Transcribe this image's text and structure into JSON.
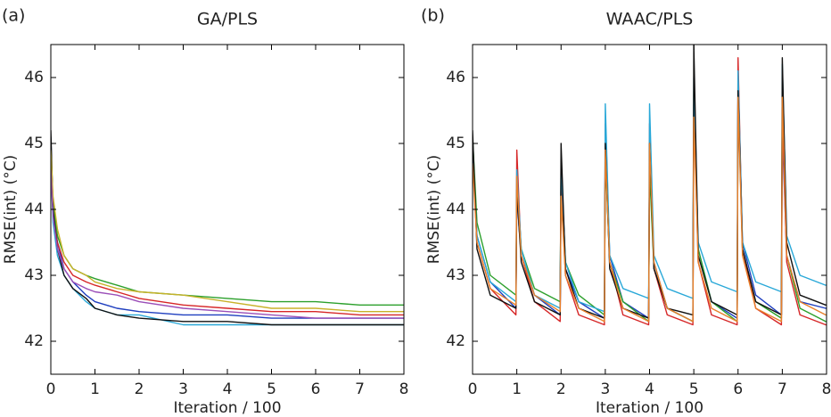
{
  "chart_data": [
    {
      "type": "line",
      "label": "(a)",
      "title": "GA/PLS",
      "xlabel": "Iteration / 100",
      "ylabel": "RMSE(int) (°C)",
      "x": [
        0,
        0.05,
        0.15,
        0.3,
        0.5,
        0.8,
        1,
        1.5,
        2,
        3,
        4,
        5,
        6,
        7,
        8
      ],
      "xlim": [
        0,
        8
      ],
      "xticks": [
        0,
        1,
        2,
        3,
        4,
        5,
        6,
        7,
        8
      ],
      "ylim": [
        41.5,
        46.5
      ],
      "yticks": [
        42,
        43,
        44,
        45,
        46
      ],
      "series": [
        {
          "color": "#1f3fbf",
          "values": [
            45.1,
            44.0,
            43.5,
            43.1,
            42.9,
            42.7,
            42.6,
            42.5,
            42.45,
            42.4,
            42.4,
            42.35,
            42.35,
            42.35,
            42.35
          ]
        },
        {
          "color": "#2ca02c",
          "values": [
            44.9,
            44.1,
            43.6,
            43.3,
            43.1,
            43.0,
            42.95,
            42.85,
            42.75,
            42.7,
            42.65,
            42.6,
            42.6,
            42.55,
            42.55
          ]
        },
        {
          "color": "#d62728",
          "values": [
            44.8,
            43.9,
            43.5,
            43.2,
            43.0,
            42.9,
            42.85,
            42.75,
            42.65,
            42.55,
            42.5,
            42.45,
            42.45,
            42.4,
            42.4
          ]
        },
        {
          "color": "#29a8d8",
          "values": [
            44.7,
            43.8,
            43.3,
            43.0,
            42.8,
            42.6,
            42.5,
            42.4,
            42.4,
            42.25,
            42.25,
            42.25,
            42.25,
            42.25,
            42.25
          ]
        },
        {
          "color": "#111111",
          "values": [
            45.2,
            44.0,
            43.4,
            43.0,
            42.8,
            42.65,
            42.5,
            42.4,
            42.35,
            42.3,
            42.3,
            42.25,
            42.25,
            42.25,
            42.25
          ]
        },
        {
          "color": "#c8b22a",
          "values": [
            44.9,
            44.2,
            43.7,
            43.3,
            43.1,
            43.0,
            42.9,
            42.8,
            42.75,
            42.7,
            42.6,
            42.5,
            42.5,
            42.45,
            42.45
          ]
        },
        {
          "color": "#9b4fb8",
          "values": [
            44.6,
            43.9,
            43.4,
            43.1,
            42.9,
            42.8,
            42.75,
            42.7,
            42.6,
            42.5,
            42.45,
            42.4,
            42.35,
            42.35,
            42.35
          ]
        }
      ]
    },
    {
      "type": "line",
      "label": "(b)",
      "title": "WAAC/PLS",
      "xlabel": "Iteration / 100",
      "ylabel": "RMSE(int) (°C)",
      "x": [
        0,
        0.1,
        0.4,
        0.98,
        1,
        1.1,
        1.4,
        1.98,
        2,
        2.1,
        2.4,
        2.98,
        3,
        3.1,
        3.4,
        3.98,
        4,
        4.1,
        4.4,
        4.98,
        5,
        5.1,
        5.4,
        5.98,
        6,
        6.1,
        6.4,
        6.98,
        7,
        7.1,
        7.4,
        7.98,
        8
      ],
      "xlim": [
        0,
        8
      ],
      "xticks": [
        0,
        1,
        2,
        3,
        4,
        5,
        6,
        7,
        8
      ],
      "ylim": [
        41.5,
        46.5
      ],
      "yticks": [
        42,
        43,
        44,
        45,
        46
      ],
      "series": [
        {
          "color": "#1f3fbf",
          "values": [
            45.0,
            43.6,
            42.9,
            42.5,
            44.2,
            43.3,
            42.7,
            42.4,
            44.3,
            43.1,
            42.6,
            42.35,
            45.2,
            43.3,
            42.6,
            42.35,
            44.9,
            43.2,
            42.5,
            42.3,
            45.6,
            43.4,
            42.6,
            42.35,
            46.0,
            43.5,
            42.7,
            42.4,
            45.2,
            43.3,
            42.6,
            42.5,
            42.5
          ]
        },
        {
          "color": "#2ca02c",
          "values": [
            45.1,
            43.8,
            43.0,
            42.7,
            44.5,
            43.4,
            42.8,
            42.6,
            44.6,
            43.2,
            42.7,
            42.4,
            44.8,
            43.2,
            42.6,
            42.3,
            44.6,
            43.1,
            42.5,
            42.3,
            45.8,
            43.4,
            42.6,
            42.3,
            45.9,
            43.4,
            42.6,
            42.35,
            45.9,
            43.3,
            42.5,
            42.3,
            42.3
          ]
        },
        {
          "color": "#d62728",
          "values": [
            44.9,
            43.5,
            42.8,
            42.4,
            44.9,
            43.3,
            42.6,
            42.3,
            44.4,
            43.0,
            42.4,
            42.25,
            45.3,
            43.2,
            42.4,
            42.25,
            45.3,
            43.1,
            42.4,
            42.25,
            45.6,
            43.2,
            42.4,
            42.25,
            46.3,
            43.4,
            42.5,
            42.25,
            45.5,
            43.2,
            42.4,
            42.25,
            42.25
          ]
        },
        {
          "color": "#29a8d8",
          "values": [
            44.8,
            43.6,
            42.9,
            42.6,
            44.6,
            43.4,
            42.7,
            42.5,
            44.7,
            43.2,
            42.6,
            42.45,
            45.6,
            43.3,
            42.8,
            42.65,
            45.6,
            43.3,
            42.8,
            42.65,
            46.0,
            43.5,
            42.9,
            42.75,
            46.1,
            43.5,
            42.9,
            42.75,
            46.2,
            43.6,
            43.0,
            42.85,
            42.85
          ]
        },
        {
          "color": "#111111",
          "values": [
            45.2,
            43.4,
            42.7,
            42.5,
            44.3,
            43.2,
            42.6,
            42.4,
            45.0,
            43.1,
            42.5,
            42.35,
            45.0,
            43.1,
            42.5,
            42.35,
            45.0,
            43.1,
            42.5,
            42.4,
            46.5,
            43.3,
            42.6,
            42.4,
            45.8,
            43.4,
            42.6,
            42.4,
            46.3,
            43.5,
            42.7,
            42.55,
            42.55
          ]
        },
        {
          "color": "#e8802a",
          "values": [
            44.7,
            43.5,
            42.8,
            42.55,
            44.5,
            43.3,
            42.7,
            42.45,
            44.2,
            43.0,
            42.5,
            42.3,
            44.9,
            43.2,
            42.5,
            42.3,
            45.0,
            43.2,
            42.5,
            42.3,
            45.4,
            43.2,
            42.5,
            42.3,
            45.7,
            43.3,
            42.5,
            42.3,
            45.7,
            43.3,
            42.6,
            42.4,
            42.4
          ]
        }
      ]
    }
  ]
}
